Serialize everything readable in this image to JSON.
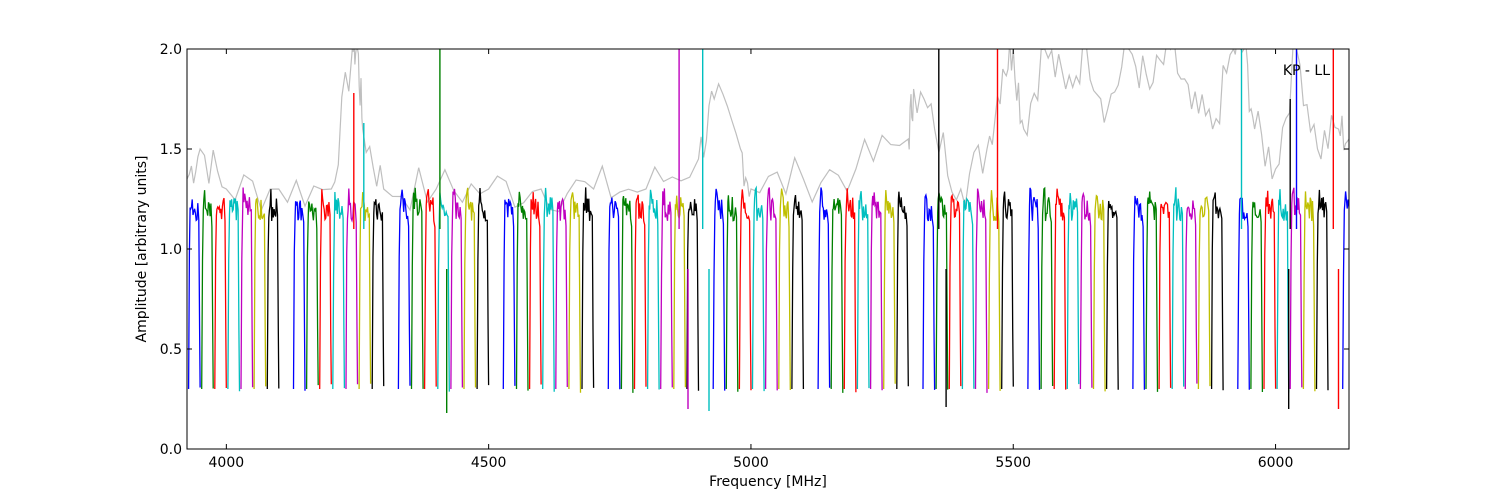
{
  "chart_data": {
    "type": "line",
    "title": "",
    "annotation": "KP - LL",
    "xlabel": "Frequency [MHz]",
    "ylabel": "Amplitude [arbitrary units]",
    "xlim": [
      3925,
      6140
    ],
    "ylim": [
      0.0,
      2.0
    ],
    "x_ticks": [
      4000,
      4500,
      5000,
      5500,
      6000
    ],
    "y_ticks": [
      0.0,
      0.5,
      1.0,
      1.5,
      2.0
    ],
    "x_tick_labels": [
      "4000",
      "4500",
      "5000",
      "5500",
      "6000"
    ],
    "y_tick_labels": [
      "0.0",
      "0.5",
      "1.0",
      "1.5",
      "2.0"
    ],
    "grid": false,
    "legend": "none",
    "background_series": {
      "color": "#bfbfbf",
      "description_values_x": [
        3925,
        3950,
        4000,
        4100,
        4200,
        4240,
        4250,
        4260,
        4300,
        4400,
        4500,
        4600,
        4700,
        4800,
        4900,
        4930,
        4980,
        5000,
        5100,
        5200,
        5300,
        5310,
        5350,
        5400,
        5450,
        5480,
        5500,
        5520,
        5560,
        5600,
        5640,
        5680,
        5720,
        5760,
        5800,
        5840,
        5880,
        5920,
        5940,
        5960,
        6000,
        6040,
        6080,
        6120,
        6140
      ],
      "description_values_y": [
        1.35,
        1.5,
        1.3,
        1.3,
        1.3,
        2.0,
        2.0,
        1.6,
        1.3,
        1.3,
        1.3,
        1.3,
        1.3,
        1.3,
        1.45,
        1.75,
        1.5,
        1.3,
        1.35,
        1.4,
        1.55,
        1.8,
        1.6,
        1.3,
        1.5,
        1.9,
        2.0,
        1.6,
        2.0,
        1.8,
        2.0,
        1.7,
        2.0,
        1.8,
        2.0,
        1.7,
        1.6,
        2.0,
        2.0,
        1.6,
        1.4,
        2.0,
        1.5,
        1.6,
        1.55
      ]
    },
    "series": [
      {
        "color": "#0000ff",
        "channels": [
          3928,
          4128,
          4328,
          4528,
          4728,
          4928,
          5128,
          5328,
          5528,
          5728,
          5928,
          6128
        ]
      },
      {
        "color": "#008000",
        "channels": [
          3953,
          4153,
          4353,
          4553,
          4753,
          4953,
          5153,
          5353,
          5553,
          5753,
          5953
        ]
      },
      {
        "color": "#ff0000",
        "channels": [
          3978,
          4178,
          4378,
          4578,
          4778,
          4978,
          5178,
          5378,
          5578,
          5778,
          5978
        ]
      },
      {
        "color": "#00bfbf",
        "channels": [
          4003,
          4203,
          4403,
          4603,
          4803,
          5003,
          5203,
          5403,
          5603,
          5803,
          6003
        ]
      },
      {
        "color": "#bf00bf",
        "channels": [
          4028,
          4228,
          4428,
          4628,
          4828,
          5028,
          5228,
          5428,
          5628,
          5828,
          6028
        ]
      },
      {
        "color": "#bfbf00",
        "channels": [
          4053,
          4253,
          4453,
          4653,
          4853,
          5053,
          5253,
          5453,
          5653,
          5853,
          6053
        ]
      },
      {
        "color": "#000000",
        "channels": [
          4078,
          4278,
          4478,
          4678,
          4878,
          5078,
          5278,
          5478,
          5678,
          5878,
          6078
        ]
      }
    ],
    "channel_width_mhz": 22,
    "band_plateau": 1.2,
    "band_floor": 0.28,
    "spikes": [
      {
        "x": 4243,
        "y": 1.78,
        "color": "#ff0000"
      },
      {
        "x": 4262,
        "y": 1.63,
        "color": "#00bfbf"
      },
      {
        "x": 4407,
        "y": 2.0,
        "color": "#008000"
      },
      {
        "x": 4420,
        "y": 0.18,
        "color": "#008000"
      },
      {
        "x": 4863,
        "y": 2.0,
        "color": "#bf00bf"
      },
      {
        "x": 4880,
        "y": 0.2,
        "color": "#bf00bf"
      },
      {
        "x": 4908,
        "y": 2.0,
        "color": "#00bfbf"
      },
      {
        "x": 4920,
        "y": 0.19,
        "color": "#00bfbf"
      },
      {
        "x": 5358,
        "y": 2.0,
        "color": "#000000"
      },
      {
        "x": 5372,
        "y": 0.21,
        "color": "#000000"
      },
      {
        "x": 5470,
        "y": 2.0,
        "color": "#ff0000"
      },
      {
        "x": 5935,
        "y": 2.0,
        "color": "#00bfbf"
      },
      {
        "x": 6028,
        "y": 1.75,
        "color": "#000000"
      },
      {
        "x": 6025,
        "y": 0.2,
        "color": "#000000"
      },
      {
        "x": 6040,
        "y": 2.0,
        "color": "#0000ff"
      },
      {
        "x": 6110,
        "y": 2.0,
        "color": "#ff0000"
      },
      {
        "x": 6120,
        "y": 0.2,
        "color": "#ff0000"
      }
    ]
  }
}
